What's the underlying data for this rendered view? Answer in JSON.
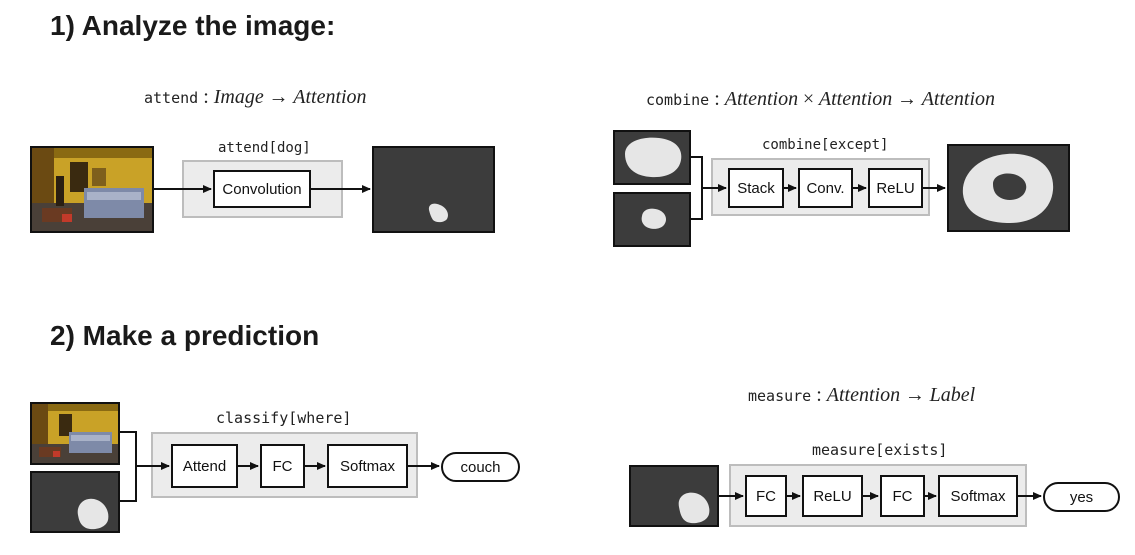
{
  "sections": {
    "analyze_heading": "1) Analyze the image:",
    "predict_heading": "2) Make a prediction"
  },
  "attend": {
    "sig_name": "attend",
    "sig_sep": " : ",
    "sig_in": "Image",
    "arrow": "→",
    "sig_out": "Attention",
    "module_label": "attend[dog]",
    "layers": [
      "Convolution"
    ]
  },
  "combine": {
    "sig_name": "combine",
    "sig_sep": " : ",
    "sig_a": "Attention",
    "times": "×",
    "sig_b": "Attention",
    "arrow": "→",
    "sig_out": "Attention",
    "module_label": "combine[except]",
    "layers": [
      "Stack",
      "Conv.",
      "ReLU"
    ]
  },
  "classify": {
    "module_label": "classify[where]",
    "layers": [
      "Attend",
      "FC",
      "Softmax"
    ],
    "output": "couch"
  },
  "measure": {
    "sig_name": "measure",
    "sig_sep": " : ",
    "sig_in": "Attention",
    "arrow": "→",
    "sig_out": "Label",
    "module_label": "measure[exists]",
    "layers": [
      "FC",
      "ReLU",
      "FC",
      "Softmax"
    ],
    "output": "yes"
  },
  "colors": {
    "module_fill": "#ececec",
    "module_border": "#bdbdbd",
    "attention_bg": "#3c3c3c",
    "attention_fg": "#e6e6e6",
    "room_wall": "#c9a227"
  }
}
